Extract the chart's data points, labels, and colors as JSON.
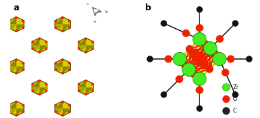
{
  "bg_color": "#ffffff",
  "label_a": "a",
  "label_b": "b",
  "label_fontsize": 9,
  "legend_items": [
    {
      "label": "Zr",
      "color": "#44ee22"
    },
    {
      "label": "O",
      "color": "#ee2200"
    },
    {
      "label": "C",
      "color": "#222222"
    }
  ],
  "legend_fontsize": 5.5,
  "zr_color": "#44ee22",
  "o_color": "#ee2200",
  "c_color": "#111111",
  "yellow": "#ddcc00",
  "dark_yellow": "#888800",
  "linker_color": "#111111"
}
